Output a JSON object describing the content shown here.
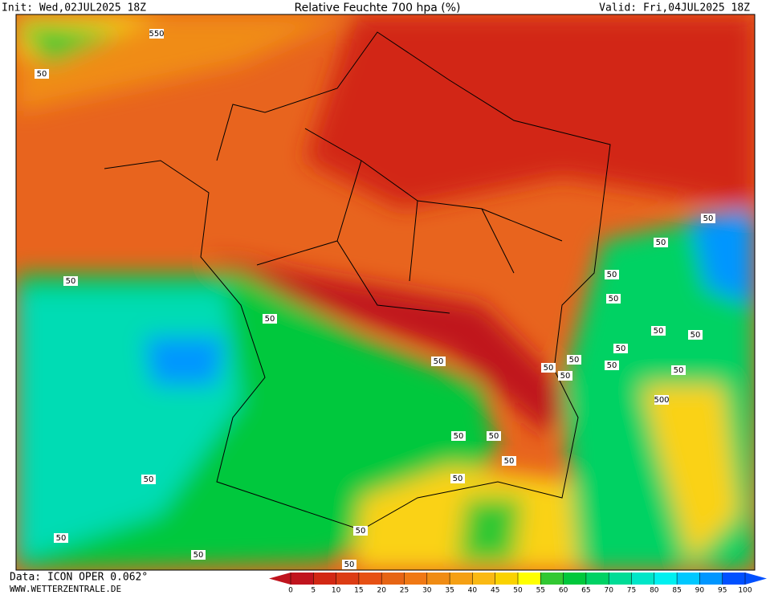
{
  "header": {
    "init": "Init: Wed,02JUL2025 18Z",
    "title": "Relative Feuchte 700 hpa (%)",
    "valid": "Valid: Fri,04JUL2025 18Z"
  },
  "footer": {
    "data": "Data: ICON OPER 0.062°",
    "site": "WWW.WETTERZENTRALE.DE"
  },
  "colorbar": {
    "ticks": [
      0,
      5,
      10,
      15,
      20,
      25,
      30,
      35,
      40,
      45,
      50,
      55,
      60,
      65,
      70,
      75,
      80,
      85,
      90,
      95,
      100
    ],
    "colors": [
      "#c0141e",
      "#d22814",
      "#dc3c14",
      "#e65014",
      "#e66414",
      "#f07814",
      "#f08c14",
      "#f5a014",
      "#fab914",
      "#fad200",
      "#ffff00",
      "#32c832",
      "#00c83c",
      "#00d264",
      "#00dc96",
      "#00e6c8",
      "#00f0f0",
      "#00c8ff",
      "#0096ff",
      "#0050ff"
    ]
  },
  "contour_labels": [
    "550",
    "50",
    "50",
    "50",
    "50",
    "50",
    "50",
    "50",
    "50",
    "50",
    "50",
    "50",
    "50",
    "50",
    "500",
    "50",
    "50",
    "50",
    "50",
    "50",
    "50",
    "50",
    "50",
    "50",
    "50",
    "50",
    "50"
  ]
}
